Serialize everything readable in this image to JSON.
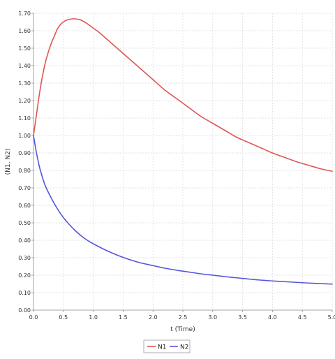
{
  "chart_data": {
    "type": "line",
    "title": "",
    "xlabel": "t (Time)",
    "ylabel": "(N1, N2)",
    "xlim": [
      0,
      5
    ],
    "ylim": [
      0,
      1.7
    ],
    "x_ticks": [
      "0.0",
      "0.5",
      "1.0",
      "1.5",
      "2.0",
      "2.5",
      "3.0",
      "3.5",
      "4.0",
      "4.5",
      "5.0"
    ],
    "y_ticks": [
      "0.00",
      "0.10",
      "0.20",
      "0.30",
      "0.40",
      "0.50",
      "0.60",
      "0.70",
      "0.80",
      "0.90",
      "1.00",
      "1.10",
      "1.20",
      "1.30",
      "1.40",
      "1.50",
      "1.60",
      "1.70"
    ],
    "grid": true,
    "legend_position": "bottom-center",
    "series": [
      {
        "name": "N1",
        "color": "#e05555",
        "x": [
          0.0,
          0.05,
          0.1,
          0.15,
          0.2,
          0.25,
          0.3,
          0.35,
          0.4,
          0.45,
          0.5,
          0.55,
          0.6,
          0.65,
          0.7,
          0.75,
          0.8,
          0.9,
          1.0,
          1.1,
          1.2,
          1.3,
          1.4,
          1.5,
          1.6,
          1.7,
          1.8,
          1.9,
          2.0,
          2.2,
          2.4,
          2.6,
          2.8,
          3.0,
          3.2,
          3.4,
          3.6,
          3.8,
          4.0,
          4.2,
          4.4,
          4.6,
          4.8,
          5.0
        ],
        "y": [
          1.0,
          1.12,
          1.24,
          1.34,
          1.42,
          1.48,
          1.53,
          1.57,
          1.61,
          1.635,
          1.65,
          1.66,
          1.665,
          1.668,
          1.668,
          1.665,
          1.66,
          1.64,
          1.615,
          1.59,
          1.56,
          1.53,
          1.5,
          1.47,
          1.44,
          1.41,
          1.38,
          1.35,
          1.32,
          1.26,
          1.21,
          1.16,
          1.11,
          1.07,
          1.03,
          0.99,
          0.96,
          0.93,
          0.9,
          0.875,
          0.85,
          0.83,
          0.81,
          0.795
        ]
      },
      {
        "name": "N2",
        "color": "#5555dd",
        "x": [
          0.0,
          0.05,
          0.1,
          0.15,
          0.2,
          0.3,
          0.4,
          0.5,
          0.6,
          0.7,
          0.8,
          0.9,
          1.0,
          1.2,
          1.4,
          1.6,
          1.8,
          2.0,
          2.2,
          2.4,
          2.6,
          2.8,
          3.0,
          3.2,
          3.4,
          3.6,
          3.8,
          4.0,
          4.2,
          4.4,
          4.6,
          4.8,
          5.0
        ],
        "y": [
          1.0,
          0.9,
          0.82,
          0.76,
          0.71,
          0.64,
          0.58,
          0.53,
          0.49,
          0.455,
          0.425,
          0.4,
          0.38,
          0.345,
          0.315,
          0.29,
          0.27,
          0.255,
          0.24,
          0.228,
          0.218,
          0.208,
          0.2,
          0.192,
          0.185,
          0.178,
          0.172,
          0.167,
          0.163,
          0.159,
          0.155,
          0.152,
          0.149
        ]
      }
    ]
  }
}
